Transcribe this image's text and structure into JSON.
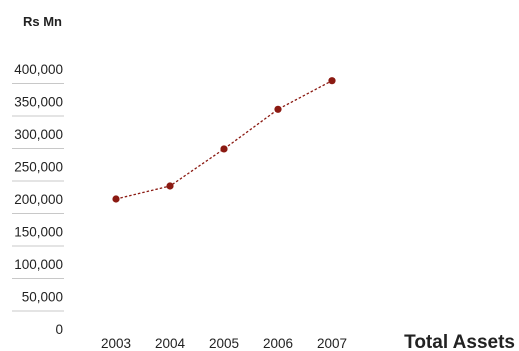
{
  "chart_data": {
    "type": "line",
    "title": "Total Assets",
    "ylabel": "Rs Mn",
    "xlabel": "",
    "categories": [
      "2003",
      "2004",
      "2005",
      "2006",
      "2007"
    ],
    "series": [
      {
        "values": [
          200000,
          220000,
          277000,
          338000,
          382000
        ]
      }
    ],
    "yticks": [
      "0",
      "50,000",
      "100,000",
      "150,000",
      "200,000",
      "250,000",
      "300,000",
      "350,000",
      "400,000"
    ],
    "ylim": [
      0,
      400000
    ],
    "grid": false,
    "colors": {
      "line": "#8b1a12",
      "marker": "#8b1a12",
      "axis": "#c8c8c8"
    }
  }
}
